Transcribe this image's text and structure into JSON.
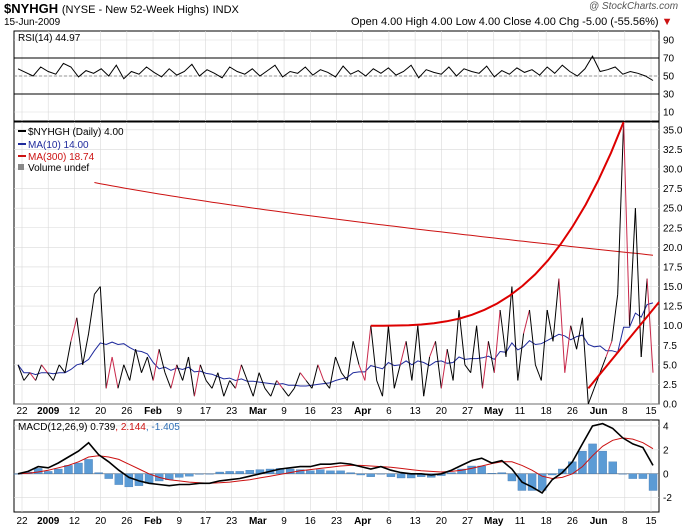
{
  "header": {
    "symbol": "$NYHGH",
    "description": "(NYSE - New 52-Week Highs)",
    "exchange": "INDX",
    "date": "15-Jun-2009",
    "ohlc": "Open 4.00  High 4.00  Low 4.00  Close 4.00  Chg -5.00 (-55.56%)",
    "down_marker": "▼",
    "watermark": "@ StockCharts.com"
  },
  "colors": {
    "price": "#000000",
    "price_segment": "#c8284a",
    "ma10": "#1f2a9c",
    "ma300": "#cc1111",
    "trendline": "#dd0000",
    "histogram": "#5b9bd5",
    "grid": "#d9d9d9"
  },
  "chart_data": [
    {
      "type": "line",
      "name": "RSI",
      "legend": "RSI(14) 44.97",
      "yticks": [
        90,
        70,
        50,
        30,
        10
      ],
      "ylim": [
        0,
        100
      ],
      "values": [
        58,
        54,
        50,
        60,
        55,
        52,
        64,
        60,
        49,
        56,
        53,
        58,
        50,
        62,
        47,
        55,
        52,
        60,
        54,
        49,
        58,
        51,
        55,
        63,
        50,
        57,
        53,
        48,
        60,
        55,
        52,
        58,
        50,
        56,
        62,
        49,
        55,
        53,
        60,
        51,
        57,
        54,
        49,
        61,
        52,
        56,
        50,
        58,
        53,
        59,
        51,
        55,
        62,
        48,
        57,
        54,
        52,
        60,
        50,
        58,
        55,
        53,
        61,
        49,
        56,
        52,
        59,
        54,
        57,
        51,
        60,
        53,
        62,
        55,
        50,
        58,
        72,
        55,
        57,
        60,
        52,
        55,
        53,
        50,
        45
      ]
    },
    {
      "type": "line",
      "name": "NYHGH",
      "legend_price": "$NYHGH (Daily) 4.00",
      "legend_ma10": "MA(10) 14.00",
      "legend_ma300": "MA(300) 18.74",
      "legend_volume": "Volume undef",
      "yticks": [
        0,
        2.5,
        5,
        7.5,
        10,
        12.5,
        15,
        17.5,
        20,
        22.5,
        25,
        27.5,
        30,
        32.5,
        35
      ],
      "ylim": [
        0,
        36
      ],
      "price": [
        5,
        3,
        4,
        3,
        5,
        4,
        3,
        5,
        4,
        8,
        11,
        5,
        9,
        14,
        15,
        2,
        6,
        2,
        5,
        3,
        7,
        4,
        6,
        3,
        7,
        4,
        2,
        5,
        3,
        6,
        1,
        5,
        3,
        2,
        4,
        1,
        3,
        2,
        5,
        3,
        1,
        4,
        2,
        1,
        3,
        2,
        1,
        2,
        4,
        3,
        2,
        5,
        3,
        2,
        6,
        4,
        3,
        8,
        5,
        3,
        10,
        3,
        1,
        10,
        2,
        5,
        8,
        3,
        10,
        1,
        6,
        8,
        2,
        7,
        3,
        12,
        5,
        4,
        10,
        2,
        8,
        4,
        12,
        6,
        15,
        3,
        9,
        12,
        5,
        3,
        12,
        8,
        16,
        4,
        10,
        7,
        11,
        0,
        2,
        4,
        6,
        8,
        14,
        36,
        10,
        25,
        6,
        16,
        4
      ]
    },
    {
      "type": "line",
      "name": "MACD",
      "legend_prefix": "MACD(12,26,9) ",
      "legend_macd": "0.739",
      "legend_signal": ", 2.144",
      "legend_hist": ", -1.405",
      "yticks": [
        4,
        2,
        0,
        -2
      ],
      "ylim": [
        -3.2,
        4.5
      ],
      "macd": [
        0,
        0.2,
        0.6,
        0.5,
        0.9,
        1.4,
        1.9,
        2.6,
        1.6,
        1.0,
        0.3,
        -0.3,
        -0.6,
        -0.8,
        -0.9,
        -1.0,
        -0.9,
        -0.9,
        -0.8,
        -0.8,
        -0.6,
        -0.5,
        -0.4,
        -0.2,
        0,
        0.2,
        0.4,
        0.5,
        0.6,
        0.6,
        0.8,
        0.8,
        0.9,
        0.8,
        0.6,
        0.4,
        0.6,
        0.3,
        0.1,
        0.0,
        0.0,
        -0.1,
        0.0,
        0.3,
        0.7,
        1.1,
        1.3,
        0.9,
        1.1,
        0.4,
        -0.7,
        -1.1,
        -1.6,
        -0.5,
        0.1,
        1.0,
        2.5,
        4.0,
        4.2,
        3.8,
        3.0,
        2.5,
        2.2,
        0.7
      ],
      "signal": [
        0,
        0.05,
        0.15,
        0.3,
        0.5,
        0.7,
        1.0,
        1.4,
        1.5,
        1.4,
        1.2,
        0.8,
        0.4,
        0.0,
        -0.3,
        -0.5,
        -0.6,
        -0.7,
        -0.75,
        -0.8,
        -0.75,
        -0.7,
        -0.6,
        -0.5,
        -0.35,
        -0.2,
        -0.05,
        0.1,
        0.25,
        0.35,
        0.45,
        0.55,
        0.65,
        0.7,
        0.7,
        0.65,
        0.6,
        0.55,
        0.45,
        0.35,
        0.25,
        0.2,
        0.15,
        0.2,
        0.3,
        0.45,
        0.65,
        0.85,
        1.0,
        1.0,
        0.7,
        0.3,
        -0.2,
        -0.4,
        -0.3,
        0.0,
        0.6,
        1.5,
        2.3,
        2.8,
        3.0,
        2.9,
        2.6,
        2.1
      ],
      "histogram": [
        0,
        0.15,
        0.45,
        0.2,
        0.4,
        0.7,
        0.9,
        1.2,
        0.1,
        -0.4,
        -0.9,
        -1.1,
        -1.0,
        -0.8,
        -0.6,
        -0.5,
        -0.3,
        -0.2,
        -0.05,
        0,
        0.15,
        0.2,
        0.2,
        0.3,
        0.35,
        0.4,
        0.45,
        0.4,
        0.35,
        0.25,
        0.35,
        0.25,
        0.25,
        0.1,
        -0.1,
        -0.25,
        0,
        -0.25,
        -0.35,
        -0.35,
        -0.25,
        -0.3,
        -0.15,
        0.1,
        0.4,
        0.65,
        0.65,
        0.05,
        0.1,
        -0.6,
        -1.4,
        -1.4,
        -1.4,
        -0.1,
        0.4,
        1.0,
        1.9,
        2.5,
        1.9,
        1.0,
        0.0,
        -0.4,
        -0.4,
        -1.4
      ]
    }
  ],
  "x_axis": {
    "labels": [
      "22",
      "2009",
      "12",
      "20",
      "26",
      "Feb",
      "9",
      "17",
      "23",
      "Mar",
      "9",
      "16",
      "23",
      "Apr",
      "6",
      "13",
      "20",
      "27",
      "May",
      "11",
      "18",
      "26",
      "Jun",
      "8",
      "15"
    ],
    "bold": [
      "2009",
      "Feb",
      "Mar",
      "Apr",
      "May",
      "Jun"
    ]
  },
  "annotations": {
    "price_trendlines": "red support/resistance lines and exponential rise curve"
  }
}
